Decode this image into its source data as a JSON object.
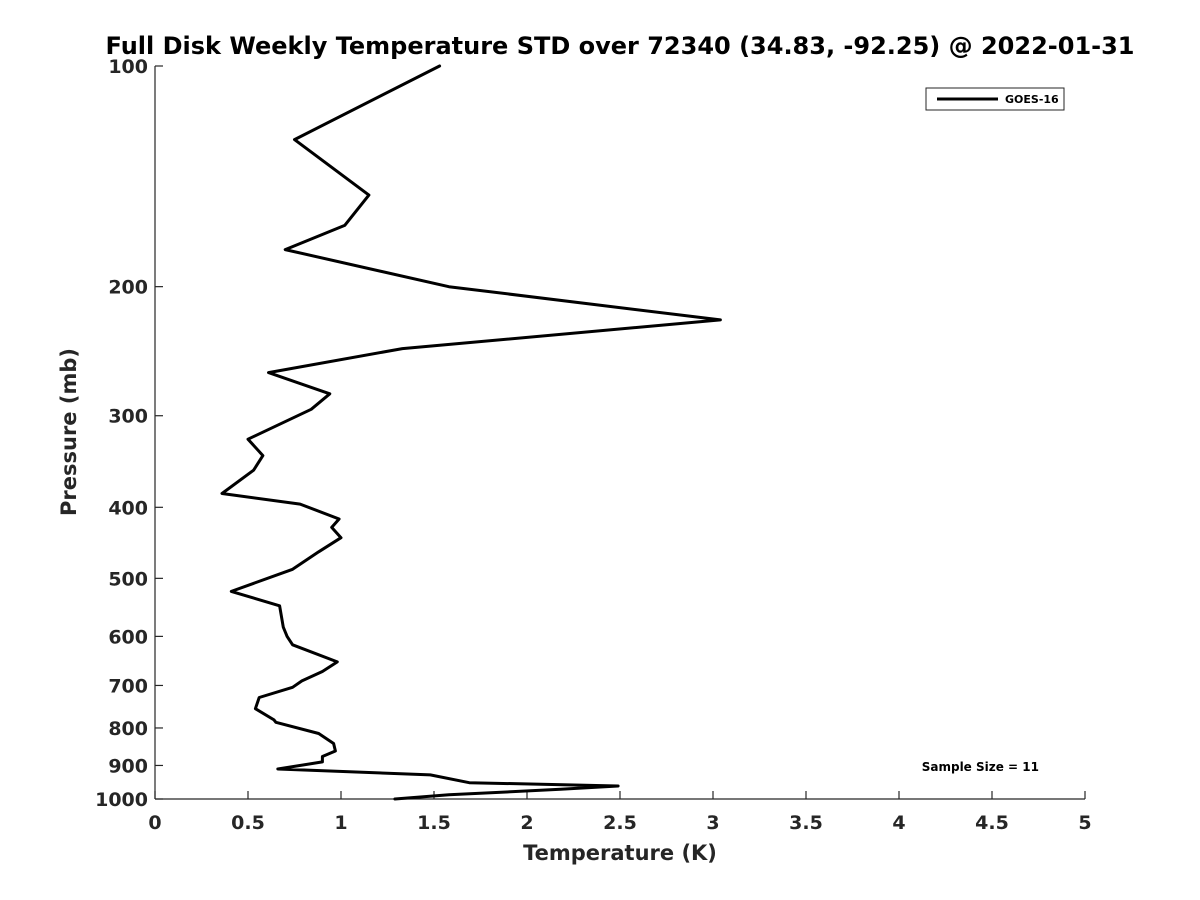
{
  "chart_data": {
    "type": "line",
    "title": "Full Disk Weekly Temperature STD over 72340 (34.83, -92.25) @ 2022-01-31",
    "xlabel": "Temperature (K)",
    "ylabel": "Pressure (mb)",
    "xlim": [
      0,
      5
    ],
    "ylim": [
      1000,
      100
    ],
    "yscale": "log",
    "y_direction": "reversed",
    "grid": false,
    "legend_position": "top-right",
    "xticks": [
      0,
      0.5,
      1,
      1.5,
      2,
      2.5,
      3,
      3.5,
      4,
      4.5,
      5
    ],
    "xtick_labels": [
      "0",
      "0.5",
      "1",
      "1.5",
      "2",
      "2.5",
      "3",
      "3.5",
      "4",
      "4.5",
      "5"
    ],
    "yticks": [
      100,
      200,
      300,
      400,
      500,
      600,
      700,
      800,
      900,
      1000
    ],
    "ytick_labels": [
      "100",
      "200",
      "300",
      "400",
      "500",
      "600",
      "700",
      "800",
      "900",
      "1000"
    ],
    "series": [
      {
        "name": "GOES-16",
        "color": "#000000",
        "x": [
          1.53,
          0.75,
          1.15,
          1.02,
          0.7,
          1.58,
          3.04,
          1.33,
          0.61,
          0.94,
          0.84,
          0.5,
          0.58,
          0.53,
          0.36,
          0.78,
          0.99,
          0.95,
          1.0,
          0.88,
          0.74,
          0.41,
          0.67,
          0.69,
          0.71,
          0.74,
          0.98,
          0.9,
          0.79,
          0.74,
          0.56,
          0.54,
          0.64,
          0.65,
          0.88,
          0.96,
          0.97,
          0.9,
          0.9,
          0.66,
          1.48,
          1.69,
          2.49,
          2.18,
          1.58,
          1.29
        ],
        "y": [
          100,
          126,
          150,
          165,
          178,
          200,
          222,
          243,
          262,
          280,
          294,
          323,
          340,
          356,
          383,
          396,
          415,
          426,
          440,
          460,
          486,
          521,
          545,
          583,
          600,
          616,
          650,
          670,
          690,
          704,
          727,
          753,
          780,
          786,
          814,
          840,
          860,
          875,
          890,
          910,
          927,
          950,
          960,
          970,
          987,
          1000
        ]
      }
    ],
    "annotations": [
      "Sample Size = 11"
    ]
  }
}
